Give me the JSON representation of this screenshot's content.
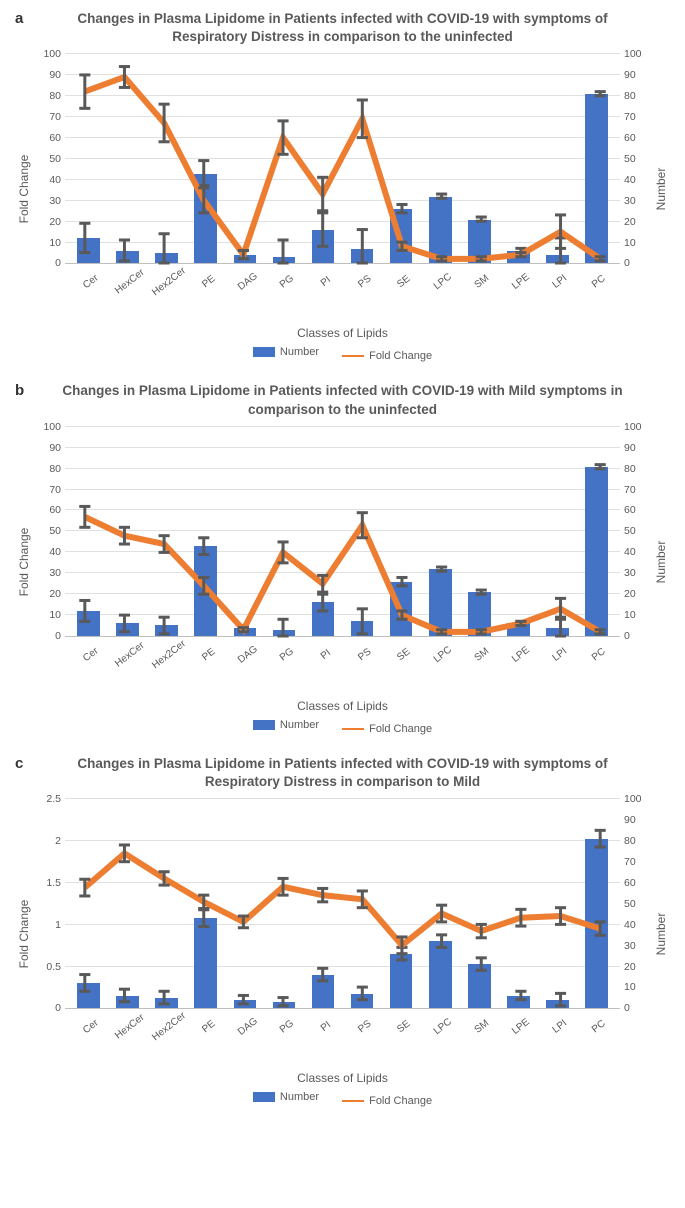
{
  "global": {
    "bar_color": "#4472c4",
    "line_color": "#ed7d31",
    "grid_color": "#e0e0e0",
    "axis_color": "#bfbfbf",
    "text_color": "#595959",
    "background_color": "#ffffff",
    "font_family": "Arial",
    "x_axis_title": "Classes of Lipids",
    "legend_bar": "Number",
    "legend_line": "Fold Change",
    "categories": [
      "Cer",
      "HexCer",
      "Hex2Cer",
      "PE",
      "DAG",
      "PG",
      "PI",
      "PS",
      "SE",
      "LPC",
      "SM",
      "LPE",
      "LPI",
      "PC"
    ]
  },
  "panels": [
    {
      "letter": "a",
      "title": "Changes in Plasma Lipidome in Patients infected with COVID-19 with symptoms of Respiratory Distress in comparison to the uninfected",
      "left_axis": {
        "label": "Fold Change",
        "min": 0,
        "max": 100,
        "step": 10
      },
      "right_axis": {
        "label": "Number",
        "min": 0,
        "max": 100,
        "step": 10
      },
      "bars_number": [
        12,
        6,
        5,
        43,
        4,
        3,
        16,
        7,
        26,
        32,
        21,
        6,
        4,
        81
      ],
      "line_fold": [
        82,
        89,
        67,
        30,
        4,
        60,
        33,
        69,
        8,
        2,
        2,
        4,
        15,
        2
      ],
      "err_bars": [
        7,
        5,
        9,
        6,
        2,
        8,
        8,
        9,
        2,
        1,
        1,
        1,
        8,
        1
      ],
      "err_fold": [
        8,
        5,
        9,
        6,
        2,
        8,
        8,
        9,
        2,
        1,
        1,
        1,
        8,
        1
      ]
    },
    {
      "letter": "b",
      "title": "Changes in Plasma Lipidome in Patients infected with COVID-19 with Mild symptoms in comparison to the uninfected",
      "left_axis": {
        "label": "Fold Change",
        "min": 0,
        "max": 100,
        "step": 10
      },
      "right_axis": {
        "label": "Number",
        "min": 0,
        "max": 100,
        "step": 10
      },
      "bars_number": [
        12,
        6,
        5,
        43,
        4,
        3,
        16,
        7,
        26,
        32,
        21,
        6,
        4,
        81
      ],
      "line_fold": [
        57,
        48,
        44,
        24,
        3,
        40,
        25,
        53,
        10,
        2,
        2,
        6,
        13,
        2
      ],
      "err_bars": [
        5,
        4,
        4,
        4,
        1,
        5,
        4,
        6,
        2,
        1,
        1,
        1,
        5,
        1
      ],
      "err_fold": [
        5,
        4,
        4,
        4,
        1,
        5,
        4,
        6,
        2,
        1,
        1,
        1,
        5,
        1
      ]
    },
    {
      "letter": "c",
      "title": "Changes in Plasma Lipidome in Patients infected with COVID-19 with symptoms of Respiratory Distress in comparison to Mild",
      "left_axis": {
        "label": "Fold Change",
        "min": 0,
        "max": 2.5,
        "step": 0.5
      },
      "right_axis": {
        "label": "Number",
        "min": 0,
        "max": 100,
        "step": 10
      },
      "bars_number": [
        12,
        6,
        5,
        43,
        4,
        3,
        16,
        7,
        26,
        32,
        21,
        6,
        4,
        81
      ],
      "line_fold": [
        1.44,
        1.85,
        1.55,
        1.27,
        1.03,
        1.45,
        1.35,
        1.3,
        0.75,
        1.13,
        0.92,
        1.08,
        1.1,
        0.95
      ],
      "err_bars": [
        4,
        3,
        3,
        4,
        2,
        2,
        3,
        3,
        3,
        3,
        3,
        2,
        3,
        4
      ],
      "err_fold": [
        0.1,
        0.1,
        0.08,
        0.08,
        0.07,
        0.1,
        0.08,
        0.1,
        0.1,
        0.1,
        0.08,
        0.1,
        0.1,
        0.08
      ]
    }
  ]
}
